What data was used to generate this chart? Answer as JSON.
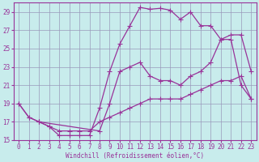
{
  "xlabel": "Windchill (Refroidissement éolien,°C)",
  "bg_color": "#c8ecec",
  "grid_color": "#9999bb",
  "line_color": "#993399",
  "xlim": [
    -0.5,
    23.5
  ],
  "ylim": [
    15,
    30
  ],
  "xticks": [
    0,
    1,
    2,
    3,
    4,
    5,
    6,
    7,
    8,
    9,
    10,
    11,
    12,
    13,
    14,
    15,
    16,
    17,
    18,
    19,
    20,
    21,
    22,
    23
  ],
  "yticks": [
    15,
    17,
    19,
    21,
    23,
    25,
    27,
    29
  ],
  "line1_x": [
    0,
    1,
    2,
    3,
    4,
    5,
    6,
    7,
    8,
    9,
    10,
    11,
    12,
    13,
    14,
    15,
    16,
    17,
    18,
    19,
    20,
    21,
    22,
    23
  ],
  "line1_y": [
    19,
    17.5,
    17,
    16.5,
    15.5,
    15.5,
    15.5,
    15.5,
    18.5,
    22.5,
    25.5,
    27.5,
    29.5,
    29.3,
    29.4,
    29.2,
    28.2,
    29.0,
    27.5,
    27.5,
    26.0,
    26.0,
    21.0,
    19.5
  ],
  "line2_x": [
    0,
    1,
    2,
    8,
    9,
    10,
    11,
    12,
    13,
    14,
    15,
    16,
    17,
    18,
    19,
    20,
    21,
    22,
    23
  ],
  "line2_y": [
    19,
    17.5,
    17,
    16.0,
    19.0,
    22.5,
    23.0,
    23.5,
    22.0,
    21.5,
    21.5,
    21.0,
    22.0,
    22.5,
    23.5,
    26.0,
    26.5,
    26.5,
    22.5
  ],
  "line3_x": [
    2,
    3,
    4,
    5,
    6,
    7,
    8,
    9,
    10,
    11,
    12,
    13,
    14,
    15,
    16,
    17,
    18,
    19,
    20,
    21,
    22,
    23
  ],
  "line3_y": [
    17.0,
    16.5,
    16.0,
    16.0,
    16.0,
    16.0,
    17.0,
    17.5,
    18.0,
    18.5,
    19.0,
    19.5,
    19.5,
    19.5,
    19.5,
    20.0,
    20.5,
    21.0,
    21.5,
    21.5,
    22.0,
    19.5
  ],
  "marker": "+",
  "markersize": 4.0,
  "linewidth": 0.9,
  "tick_fontsize": 5.5,
  "xlabel_fontsize": 5.5
}
